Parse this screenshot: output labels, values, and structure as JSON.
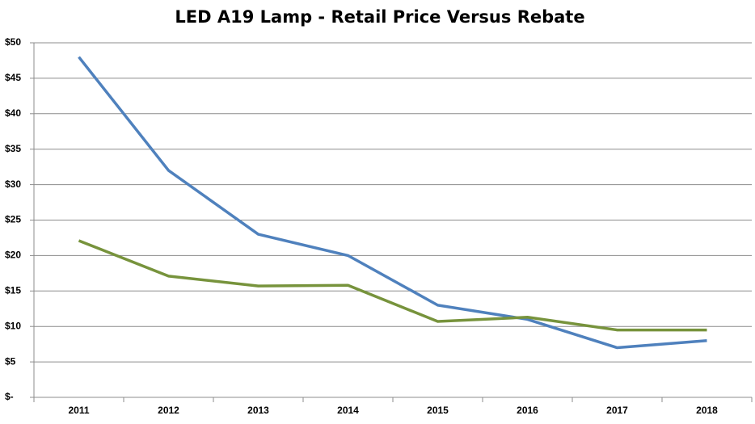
{
  "chart_data": {
    "type": "line",
    "title": "LED A19 Lamp - Retail Price Versus Rebate",
    "categories": [
      "2011",
      "2012",
      "2013",
      "2014",
      "2015",
      "2016",
      "2017",
      "2018"
    ],
    "series": [
      {
        "color": "#4f81bd",
        "values": [
          48,
          32,
          23,
          20,
          13,
          11,
          7,
          8
        ]
      },
      {
        "color": "#77933c",
        "values": [
          22.1,
          17.1,
          15.7,
          15.8,
          10.7,
          11.3,
          9.5,
          9.5
        ]
      }
    ],
    "ylim": [
      0,
      50
    ],
    "yticks": [
      {
        "value": 0,
        "label": "$-"
      },
      {
        "value": 5,
        "label": "$5"
      },
      {
        "value": 10,
        "label": "$10"
      },
      {
        "value": 15,
        "label": "$15"
      },
      {
        "value": 20,
        "label": "$20"
      },
      {
        "value": 25,
        "label": "$25"
      },
      {
        "value": 30,
        "label": "$30"
      },
      {
        "value": 35,
        "label": "$35"
      },
      {
        "value": 40,
        "label": "$40"
      },
      {
        "value": 45,
        "label": "$45"
      },
      {
        "value": 50,
        "label": "$50"
      }
    ],
    "grid": true
  }
}
